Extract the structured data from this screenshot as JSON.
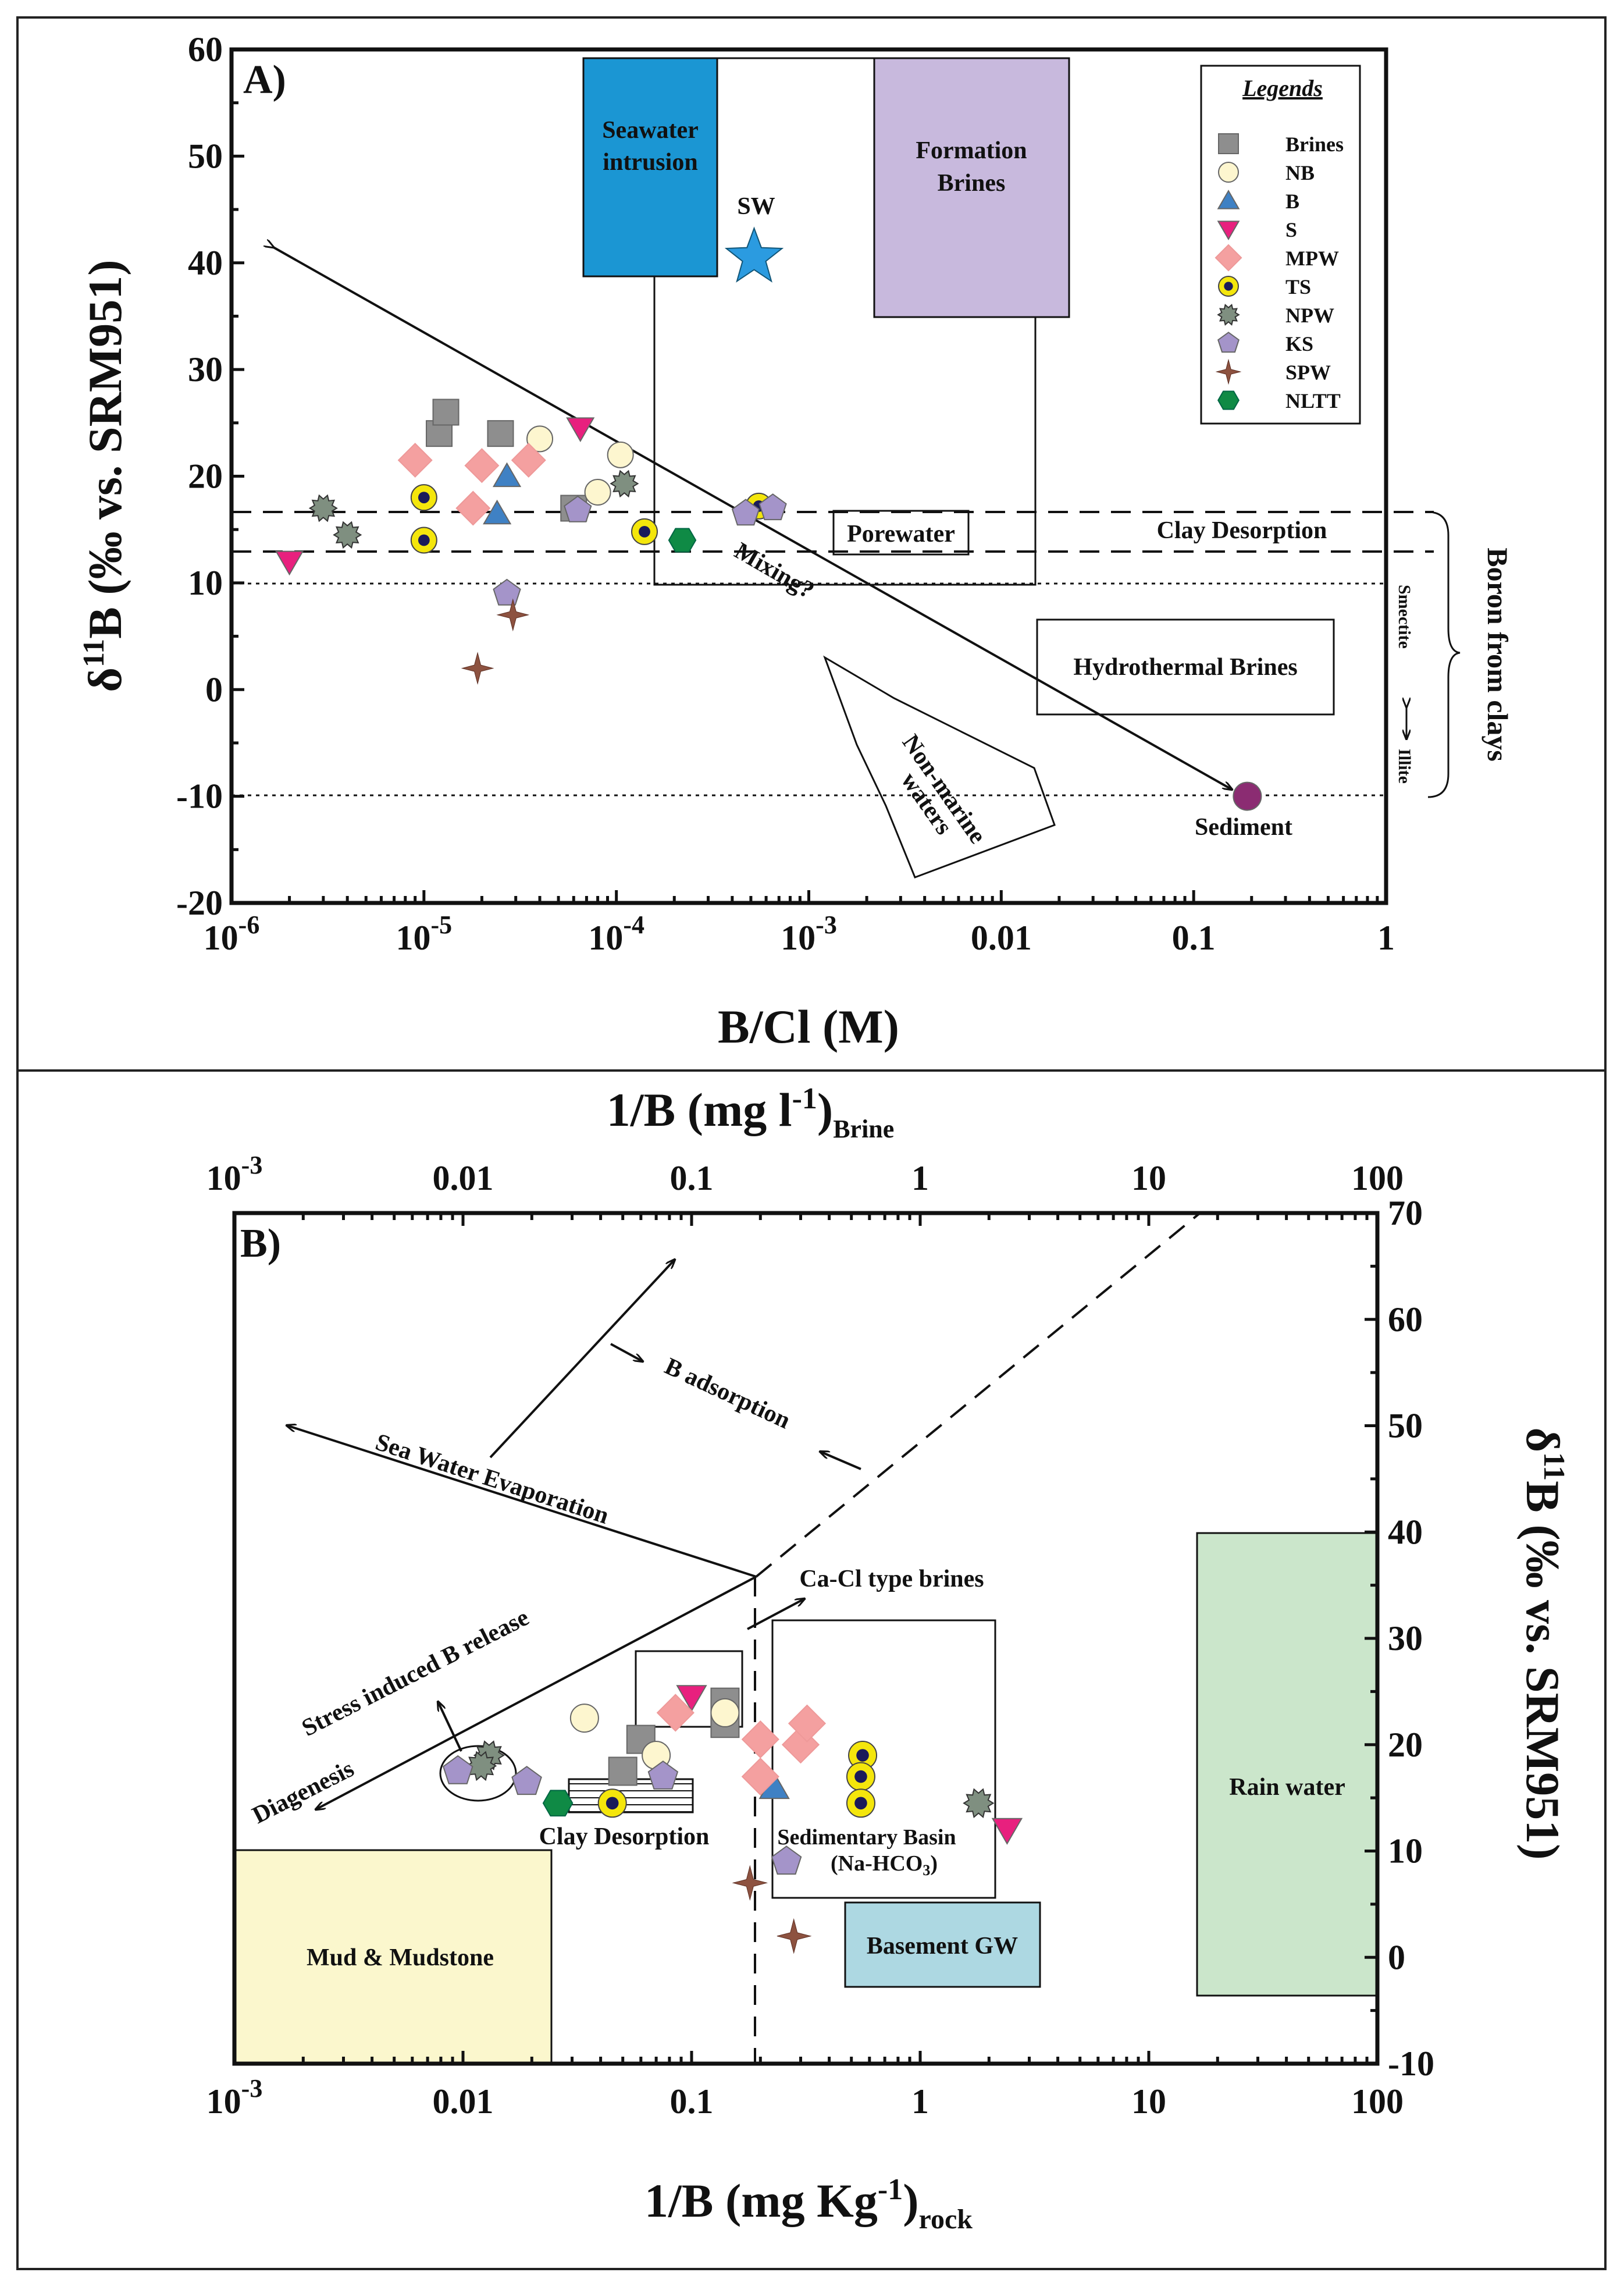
{
  "chart_data": [
    {
      "panel": "A)",
      "type": "scatter",
      "xscale": "log",
      "xlim": [
        1e-06,
        1
      ],
      "ylim": [
        -20,
        60
      ],
      "xlabel": "B/Cl (M)",
      "ylabel": "δ11B (‰ vs. SRM951)",
      "xticks": [
        "10^-6",
        "10^-5",
        "10^-4",
        "10^-3",
        "0.01",
        "0.1",
        "1"
      ],
      "yticks": [
        "60",
        "50",
        "40",
        "30",
        "20",
        "10",
        "0",
        "-10",
        "-20"
      ],
      "legend": {
        "title": "Legends",
        "entries": [
          "Brines",
          "NB",
          "B",
          "S",
          "MPW",
          "TS",
          "NPW",
          "KS",
          "SPW",
          "NLTT"
        ]
      },
      "series": [
        {
          "name": "Brines",
          "points": [
            [
              1.2e-05,
              24
            ],
            [
              1.3e-05,
              26
            ],
            [
              2.5e-05,
              24
            ],
            [
              6e-05,
              17
            ]
          ]
        },
        {
          "name": "NB",
          "points": [
            [
              4e-05,
              23.5
            ],
            [
              8e-05,
              18.5
            ],
            [
              0.000105,
              22
            ]
          ]
        },
        {
          "name": "B",
          "points": [
            [
              2.4e-05,
              16.5
            ],
            [
              2.7e-05,
              20
            ]
          ]
        },
        {
          "name": "S",
          "points": [
            [
              2e-06,
              12
            ],
            [
              6.5e-05,
              24.5
            ]
          ]
        },
        {
          "name": "MPW",
          "points": [
            [
              9e-06,
              21.5
            ],
            [
              1.8e-05,
              17
            ],
            [
              2e-05,
              21
            ],
            [
              3.5e-05,
              21.5
            ]
          ]
        },
        {
          "name": "TS",
          "points": [
            [
              1e-05,
              18
            ],
            [
              1e-05,
              14
            ],
            [
              0.00014,
              14.8
            ],
            [
              0.00055,
              17.2
            ]
          ]
        },
        {
          "name": "NPW",
          "points": [
            [
              3e-06,
              17
            ],
            [
              4e-06,
              14.5
            ],
            [
              0.00011,
              19.3
            ]
          ]
        },
        {
          "name": "KS",
          "points": [
            [
              2.7e-05,
              9
            ],
            [
              6.3e-05,
              16.8
            ],
            [
              0.00047,
              16.5
            ],
            [
              0.00065,
              17
            ]
          ]
        },
        {
          "name": "SPW",
          "points": [
            [
              1.9e-05,
              2
            ],
            [
              2.9e-05,
              7
            ]
          ]
        },
        {
          "name": "NLTT",
          "points": [
            [
              0.00022,
              14
            ]
          ]
        },
        {
          "name": "SW",
          "points": [
            [
              0.00052,
              40.5
            ]
          ]
        },
        {
          "name": "Sediment",
          "points": [
            [
              0.19,
              -10
            ]
          ]
        }
      ],
      "regions": [
        "Seawater intrusion",
        "Formation Brines",
        "Porewater",
        "Clay Desorption",
        "Hydrothermal Brines",
        "Non-marine waters"
      ],
      "annotations": [
        "SW",
        "Sediment",
        "Mixing?",
        "Boron from clays",
        "Smectite",
        "Illite"
      ]
    },
    {
      "panel": "B)",
      "type": "scatter",
      "xscale": "log",
      "xlim": [
        0.001,
        100
      ],
      "ylim": [
        -10,
        70
      ],
      "xlabel": "1/B (mg Kg-1)rock",
      "x2label": "1/B (mg l-1)Brine",
      "ylabel": "δ11B (‰ vs. SRM951)",
      "xticks": [
        "10^-3",
        "0.01",
        "0.1",
        "1",
        "10",
        "100"
      ],
      "yticks": [
        "70",
        "60",
        "50",
        "40",
        "30",
        "20",
        "10",
        "0",
        "-10"
      ],
      "series": [
        {
          "name": "Brines",
          "points": [
            [
              0.06,
              20.5
            ],
            [
              0.05,
              17.5
            ],
            [
              0.14,
              22
            ],
            [
              0.14,
              24
            ]
          ]
        },
        {
          "name": "NB",
          "points": [
            [
              0.034,
              22.5
            ],
            [
              0.07,
              19
            ],
            [
              0.14,
              23
            ]
          ]
        },
        {
          "name": "B",
          "points": [
            [
              0.23,
              16
            ]
          ]
        },
        {
          "name": "S",
          "points": [
            [
              0.1,
              24.5
            ],
            [
              2.4,
              12
            ]
          ]
        },
        {
          "name": "MPW",
          "points": [
            [
              0.085,
              23
            ],
            [
              0.2,
              20.5
            ],
            [
              0.2,
              17
            ],
            [
              0.3,
              20
            ],
            [
              0.32,
              22
            ]
          ]
        },
        {
          "name": "TS",
          "points": [
            [
              0.045,
              14.5
            ],
            [
              0.56,
              19
            ],
            [
              0.55,
              17
            ],
            [
              0.55,
              14.5
            ]
          ]
        },
        {
          "name": "NPW",
          "points": [
            [
              0.013,
              19
            ],
            [
              0.012,
              18
            ],
            [
              1.8,
              14.5
            ]
          ]
        },
        {
          "name": "KS",
          "points": [
            [
              0.0095,
              17.5
            ],
            [
              0.019,
              16.5
            ],
            [
              0.075,
              17
            ],
            [
              0.26,
              9
            ]
          ]
        },
        {
          "name": "SPW",
          "points": [
            [
              0.18,
              7
            ],
            [
              0.28,
              2
            ]
          ]
        },
        {
          "name": "NLTT",
          "points": [
            [
              0.026,
              14.5
            ]
          ]
        }
      ],
      "regions": [
        "Mud & Mudstone",
        "Basement GW",
        "Rain water",
        "Sedimentary Basin (Na-HCO3)",
        "Clay Desorption"
      ],
      "annotations": [
        "Sea Water Evaporation",
        "B adsorption",
        "Ca-Cl type brines",
        "Stress induced B release",
        "Diagenesis"
      ]
    }
  ],
  "colors": {
    "seawater": "#1b96d3",
    "formation": "#c8b9dd",
    "brines": "#8e8e8e",
    "nb": "#fdf6cf",
    "b": "#3f81c4",
    "s": "#e8207e",
    "mpw": "#f4a0a0",
    "ts_fill": "#f4e60c",
    "ts_core": "#1a1a5a",
    "npw": "#7f8f80",
    "ks": "#a494c9",
    "spw": "#8d5240",
    "nltt": "#0f8a45",
    "sediment": "#8b2c72",
    "sw_star": "#2b9be0",
    "mud": "#fbf7cd",
    "basement": "#add8e2",
    "rain": "#cbe6cb"
  },
  "text": {
    "a_panel": "A)",
    "b_panel": "B)",
    "a_xtitle": "B/Cl (M)",
    "a_ytitle_pre": "δ",
    "a_ytitle_sup": "11",
    "a_ytitle_post": "B (‰ vs. SRM951)",
    "b_xtitle_main": "1/B (mg Kg",
    "b_xtitle_sup": "-1",
    "b_xtitle_close": ")",
    "b_xtitle_sub": "rock",
    "b_x2title_main": "1/B (mg l",
    "b_x2title_sup": "-1",
    "b_x2title_close": ")",
    "b_x2title_sub": "Brine",
    "b_ytitle_pre": "δ",
    "b_ytitle_sup": "11",
    "b_ytitle_post": "B (‰ vs. SRM951)",
    "legend_title": "Legends",
    "seawater_1": "Seawater",
    "seawater_2": "intrusion",
    "formation_1": "Formation",
    "formation_2": "Brines",
    "sw": "SW",
    "porewater": "Porewater",
    "clay_desorption": "Clay Desorption",
    "hydrothermal": "Hydrothermal Brines",
    "nonmarine_1": "Non-marine",
    "nonmarine_2": "waters",
    "sediment": "Sediment",
    "mixing": "Mixing?",
    "boron_clays": "Boron from clays",
    "smectite": "Smectite",
    "illite": "Illite",
    "sea_evap": "Sea Water Evaporation",
    "b_adsorption": "B adsorption",
    "cacl": "Ca-Cl type brines",
    "stress": "Stress induced B release",
    "diagenesis": "Diagenesis",
    "clay_desorption_b": "Clay Desorption",
    "sed_basin_1": "Sedimentary Basin",
    "sed_basin_2": "(Na-HCO",
    "sed_basin_sub": "3",
    "sed_basin_3": ")",
    "mud": "Mud & Mudstone",
    "basement": "Basement GW",
    "rain": "Rain water"
  }
}
